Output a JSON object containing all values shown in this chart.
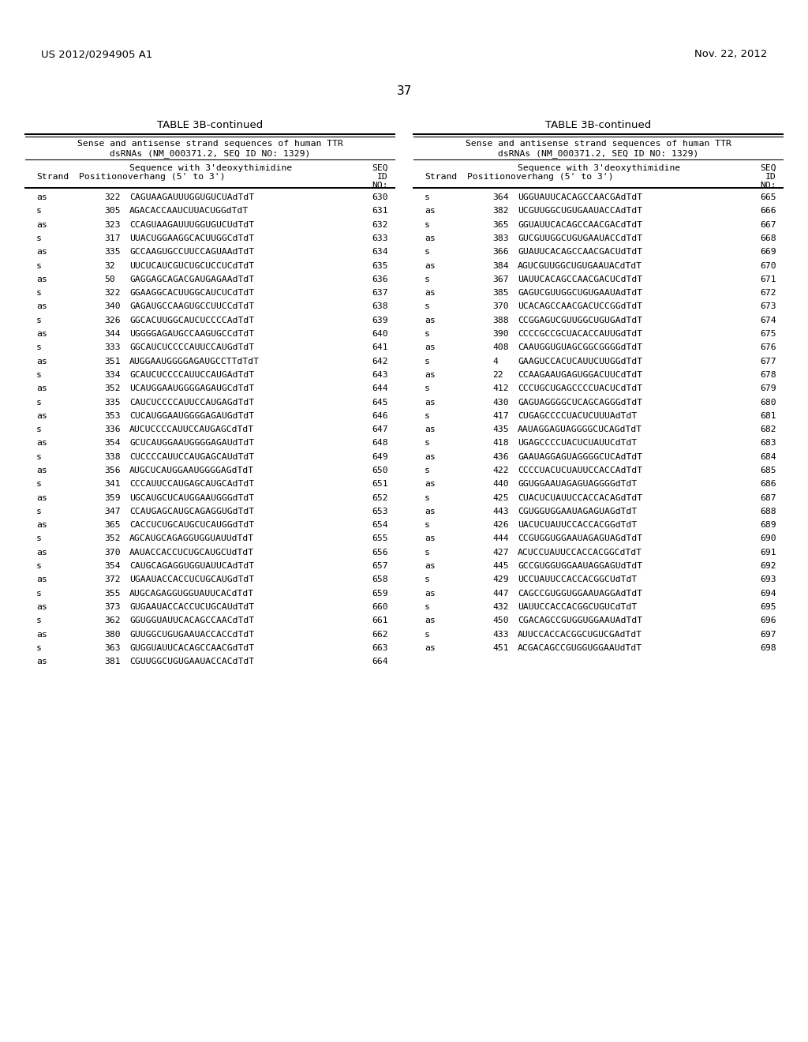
{
  "header_left": "US 2012/0294905 A1",
  "header_right": "Nov. 22, 2012",
  "page_number": "37",
  "table_title": "TABLE 3B-continued",
  "table_subtitle1": "Sense and antisense strand sequences of human TTR",
  "table_subtitle2": "dsRNAs (NM_000371.2, SEQ ID NO: 1329)",
  "left_table": [
    [
      "as",
      "322",
      "CAGUAAGAUUUGGUGUCUAdTdT",
      "630"
    ],
    [
      "s",
      "305",
      "AGACACCAAUCUUACUGGdTdT",
      "631"
    ],
    [
      "as",
      "323",
      "CCAGUAAGAUUUGGUGUCUdTdT",
      "632"
    ],
    [
      "s",
      "317",
      "UUACUGGAAGGCACUUGGCdTdT",
      "633"
    ],
    [
      "as",
      "335",
      "GCCAAGUGCCUUCCAGUAAdTdT",
      "634"
    ],
    [
      "s",
      "32",
      "UUCUCAUCGUCUGCUCCUCdTdT",
      "635"
    ],
    [
      "as",
      "50",
      "GAGGAGCAGACGAUGAGAAdTdT",
      "636"
    ],
    [
      "s",
      "322",
      "GGAAGGCACUUGGCAUCUCdTdT",
      "637"
    ],
    [
      "as",
      "340",
      "GAGAUGCCAAGUGCCUUCCdTdT",
      "638"
    ],
    [
      "s",
      "326",
      "GGCACUUGGCAUCUCCCCAdTdT",
      "639"
    ],
    [
      "as",
      "344",
      "UGGGGAGAUGCCAAGUGCCdTdT",
      "640"
    ],
    [
      "s",
      "333",
      "GGCAUCUCCCCAUUCCAUGdTdT",
      "641"
    ],
    [
      "as",
      "351",
      "AUGGAAUGGGGAGAUGCCTTdTdT",
      "642"
    ],
    [
      "s",
      "334",
      "GCAUCUCCCCAUUCCAUGAdTdT",
      "643"
    ],
    [
      "as",
      "352",
      "UCAUGGAAUGGGGAGAUGCdTdT",
      "644"
    ],
    [
      "s",
      "335",
      "CAUCUCCCCAUUCCAUGAGdTdT",
      "645"
    ],
    [
      "as",
      "353",
      "CUCAUGGAAUGGGGAGAUGdTdT",
      "646"
    ],
    [
      "s",
      "336",
      "AUCUCCCCAUUCCAUGAGCdTdT",
      "647"
    ],
    [
      "as",
      "354",
      "GCUCAUGGAAUGGGGAGAUdTdT",
      "648"
    ],
    [
      "s",
      "338",
      "CUCCCCAUUCCAUGAGCAUdTdT",
      "649"
    ],
    [
      "as",
      "356",
      "AUGCUCAUGGAAUGGGGAGdTdT",
      "650"
    ],
    [
      "s",
      "341",
      "CCCAUUCCAUGAGCAUGCAdTdT",
      "651"
    ],
    [
      "as",
      "359",
      "UGCAUGCUCAUGGAAUGGGdTdT",
      "652"
    ],
    [
      "s",
      "347",
      "CCAUGAGCAUGCAGAGGUGdTdT",
      "653"
    ],
    [
      "as",
      "365",
      "CACCUCUGCAUGCUCAUGGdTdT",
      "654"
    ],
    [
      "s",
      "352",
      "AGCAUGCAGAGGUGGUAUUdTdT",
      "655"
    ],
    [
      "as",
      "370",
      "AAUACCACCUCUGCAUGCUdTdT",
      "656"
    ],
    [
      "s",
      "354",
      "CAUGCAGAGGUGGUAUUCAdTdT",
      "657"
    ],
    [
      "as",
      "372",
      "UGAAUACCACCUCUGCAUGdTdT",
      "658"
    ],
    [
      "s",
      "355",
      "AUGCAGAGGUGGUAUUCACdTdT",
      "659"
    ],
    [
      "as",
      "373",
      "GUGAAUACCACCUCUGCAUdTdT",
      "660"
    ],
    [
      "s",
      "362",
      "GGUGGUAUUCACAGCCAACdTdT",
      "661"
    ],
    [
      "as",
      "380",
      "GUUGGCUGUGAAUACCACCdTdT",
      "662"
    ],
    [
      "s",
      "363",
      "GUGGUAUUCACAGCCAACGdTdT",
      "663"
    ],
    [
      "as",
      "381",
      "CGUUGGCUGUGAAUACCACdTdT",
      "664"
    ]
  ],
  "right_table": [
    [
      "s",
      "364",
      "UGGUAUUCACAGCCAACGAdTdT",
      "665"
    ],
    [
      "as",
      "382",
      "UCGUUGGCUGUGAAUACCAdTdT",
      "666"
    ],
    [
      "s",
      "365",
      "GGUAUUCACAGCCAACGACdTdT",
      "667"
    ],
    [
      "as",
      "383",
      "GUCGUUGGCUGUGAAUACCdTdT",
      "668"
    ],
    [
      "s",
      "366",
      "GUAUUCACAGCCAACGACUdTdT",
      "669"
    ],
    [
      "as",
      "384",
      "AGUCGUUGGCUGUGAAUACdTdT",
      "670"
    ],
    [
      "s",
      "367",
      "UAUUCACAGCCAACGACUCdTdT",
      "671"
    ],
    [
      "as",
      "385",
      "GAGUCGUUGGCUGUGAAUAdTdT",
      "672"
    ],
    [
      "s",
      "370",
      "UCACAGCCAACGACUCCGGdTdT",
      "673"
    ],
    [
      "as",
      "388",
      "CCGGAGUCGUUGGCUGUGAdTdT",
      "674"
    ],
    [
      "s",
      "390",
      "CCCCGCCGCUACACCAUUGdTdT",
      "675"
    ],
    [
      "as",
      "408",
      "CAAUGGUGUAGCGGCGGGGdTdT",
      "676"
    ],
    [
      "s",
      "4",
      "GAAGUCCACUCAUUCUUGGdTdT",
      "677"
    ],
    [
      "as",
      "22",
      "CCAAGAAUGAGUGGACUUCdTdT",
      "678"
    ],
    [
      "s",
      "412",
      "CCCUGCUGAGCCCCUACUCdTdT",
      "679"
    ],
    [
      "as",
      "430",
      "GAGUAGGGGCUCAGCAGGGdTdT",
      "680"
    ],
    [
      "s",
      "417",
      "CUGAGCCCCUACUCUUUAdTdT",
      "681"
    ],
    [
      "as",
      "435",
      "AAUAGGAGUAGGGGCUCAGdTdT",
      "682"
    ],
    [
      "s",
      "418",
      "UGAGCCCCUACUCUAUUCdTdT",
      "683"
    ],
    [
      "as",
      "436",
      "GAAUAGGAGUAGGGGCUCAdTdT",
      "684"
    ],
    [
      "s",
      "422",
      "CCCCUACUCUAUUCCACCAdTdT",
      "685"
    ],
    [
      "as",
      "440",
      "GGUGGAAUAGAGUAGGGGdTdT",
      "686"
    ],
    [
      "s",
      "425",
      "CUACUCUAUUCCACCACAGdTdT",
      "687"
    ],
    [
      "as",
      "443",
      "CGUGGUGGAAUAGAGUAGdTdT",
      "688"
    ],
    [
      "s",
      "426",
      "UACUCUAUUCCACCACGGdTdT",
      "689"
    ],
    [
      "as",
      "444",
      "CCGUGGUGGAAUAGAGUAGdTdT",
      "690"
    ],
    [
      "s",
      "427",
      "ACUCCUAUUCCACCACGGCdTdT",
      "691"
    ],
    [
      "as",
      "445",
      "GCCGUGGUGGAAUAGGAGUdTdT",
      "692"
    ],
    [
      "s",
      "429",
      "UCCUAUUCCACCACGGCUdTdT",
      "693"
    ],
    [
      "as",
      "447",
      "CAGCCGUGGUGGAAUAGGAdTdT",
      "694"
    ],
    [
      "s",
      "432",
      "UAUUCCACCACGGCUGUCdTdT",
      "695"
    ],
    [
      "as",
      "450",
      "CGACAGCCGUGGUGGAAUAdTdT",
      "696"
    ],
    [
      "s",
      "433",
      "AUUCCACCACGGCUGUCGAdTdT",
      "697"
    ],
    [
      "as",
      "451",
      "ACGACAGCCGUGGUGGAAUdTdT",
      "698"
    ]
  ],
  "bg_color": "#ffffff",
  "text_color": "#000000"
}
